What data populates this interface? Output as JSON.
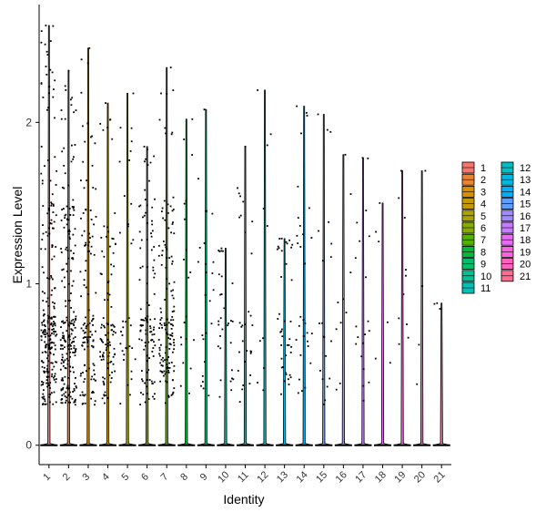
{
  "chart_data": {
    "type": "violin-jitter",
    "title": "",
    "xlabel": "Identity",
    "ylabel": "Expression Level",
    "ylim": [
      -0.12,
      2.73
    ],
    "y_ticks": [
      "0",
      "1",
      "2"
    ],
    "y_tick_values": [
      0,
      1,
      2
    ],
    "categories": [
      "1",
      "2",
      "3",
      "4",
      "5",
      "6",
      "7",
      "8",
      "9",
      "10",
      "11",
      "12",
      "13",
      "14",
      "15",
      "16",
      "17",
      "18",
      "19",
      "20",
      "21"
    ],
    "max_expression": [
      2.6,
      2.32,
      2.46,
      2.12,
      2.18,
      1.85,
      2.34,
      2.02,
      2.08,
      1.22,
      1.85,
      2.2,
      1.28,
      2.1,
      2.05,
      1.8,
      1.78,
      1.5,
      1.7,
      1.7,
      0.88
    ],
    "n_points": [
      240,
      220,
      120,
      100,
      35,
      110,
      140,
      20,
      25,
      30,
      30,
      10,
      40,
      30,
      20,
      10,
      20,
      6,
      10,
      4,
      3
    ],
    "grid": false,
    "legend": {
      "position": "right",
      "entries": [
        {
          "label": "1",
          "color": "#F8766D"
        },
        {
          "label": "2",
          "color": "#EB8335"
        },
        {
          "label": "3",
          "color": "#DA8F00"
        },
        {
          "label": "4",
          "color": "#C49A00"
        },
        {
          "label": "5",
          "color": "#A9A400"
        },
        {
          "label": "6",
          "color": "#86AC00"
        },
        {
          "label": "7",
          "color": "#53B400"
        },
        {
          "label": "8",
          "color": "#00BA38"
        },
        {
          "label": "9",
          "color": "#00BE6C"
        },
        {
          "label": "10",
          "color": "#00C094"
        },
        {
          "label": "11",
          "color": "#00C1B7"
        },
        {
          "label": "12",
          "color": "#00BFC4"
        },
        {
          "label": "13",
          "color": "#00B9E3"
        },
        {
          "label": "14",
          "color": "#00ADFA"
        },
        {
          "label": "15",
          "color": "#619CFF"
        },
        {
          "label": "16",
          "color": "#A18AFF"
        },
        {
          "label": "17",
          "color": "#C77CFF"
        },
        {
          "label": "18",
          "color": "#E76BF3"
        },
        {
          "label": "19",
          "color": "#F863DF"
        },
        {
          "label": "20",
          "color": "#FF62BC"
        },
        {
          "label": "21",
          "color": "#FF6C91"
        }
      ]
    }
  }
}
